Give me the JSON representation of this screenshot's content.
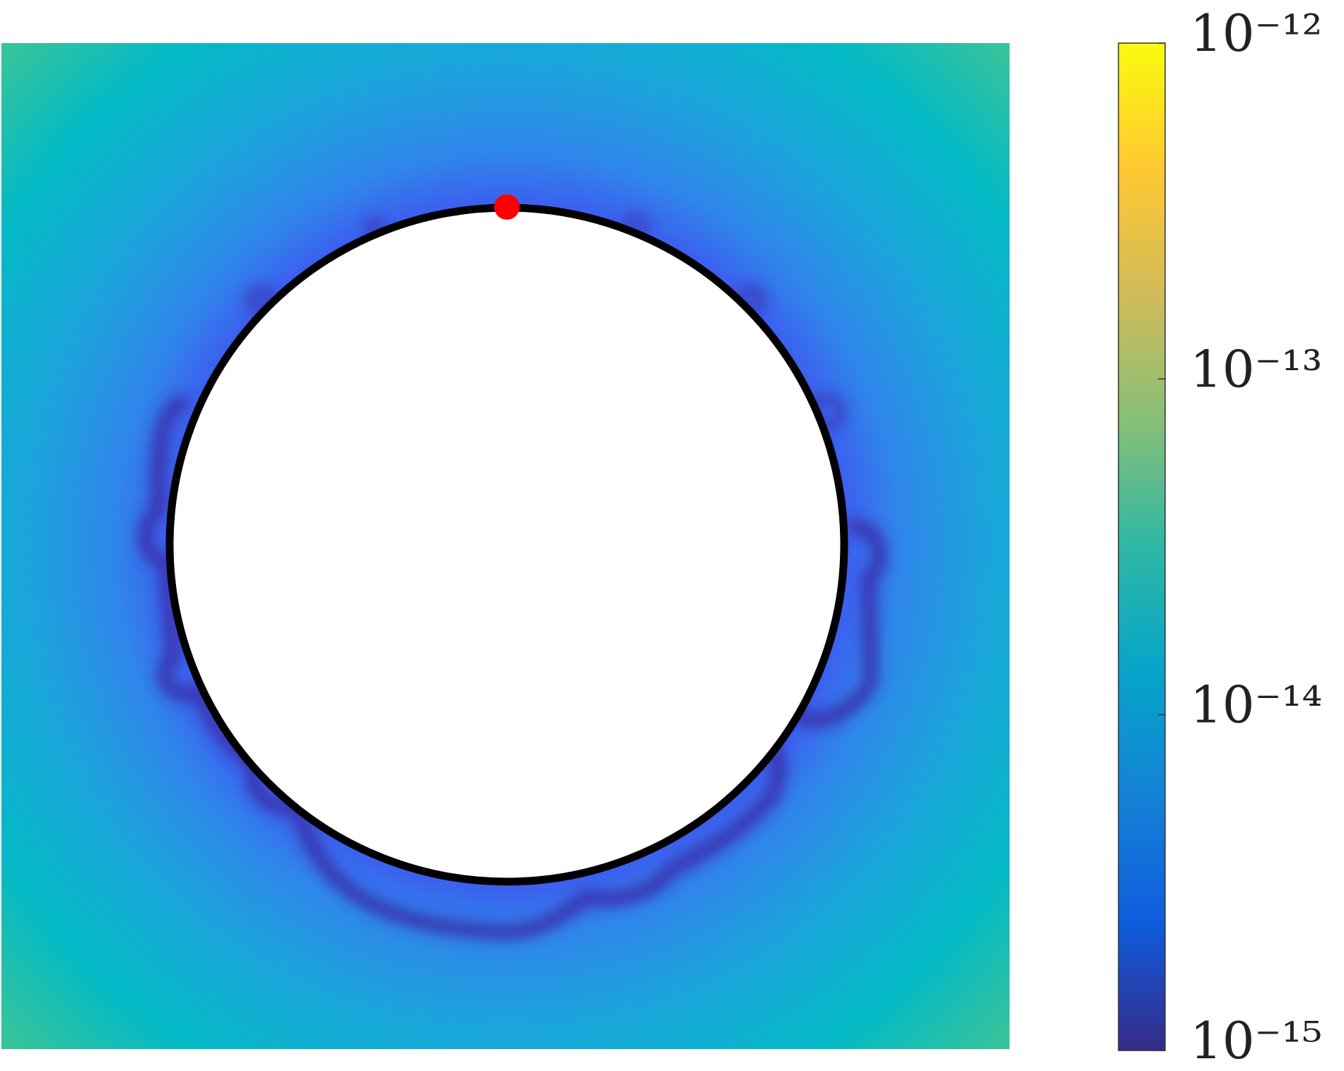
{
  "chart_data": {
    "type": "heatmap",
    "colorbar": {
      "scale": "log",
      "clim": [
        1e-15,
        1e-12
      ],
      "ticks": [
        {
          "value": 1e-12,
          "label": "10⁻¹²"
        },
        {
          "value": 1e-13,
          "label": "10⁻¹³"
        },
        {
          "value": 1e-14,
          "label": "10⁻¹⁴"
        },
        {
          "value": 1e-15,
          "label": "10⁻¹⁵"
        }
      ],
      "colormap": [
        "#352a87",
        "#0f5cdd",
        "#1481d6",
        "#06a4ca",
        "#2eb7a4",
        "#87bf77",
        "#d1bb59",
        "#fec832",
        "#f9fb0e"
      ]
    }
  }
}
